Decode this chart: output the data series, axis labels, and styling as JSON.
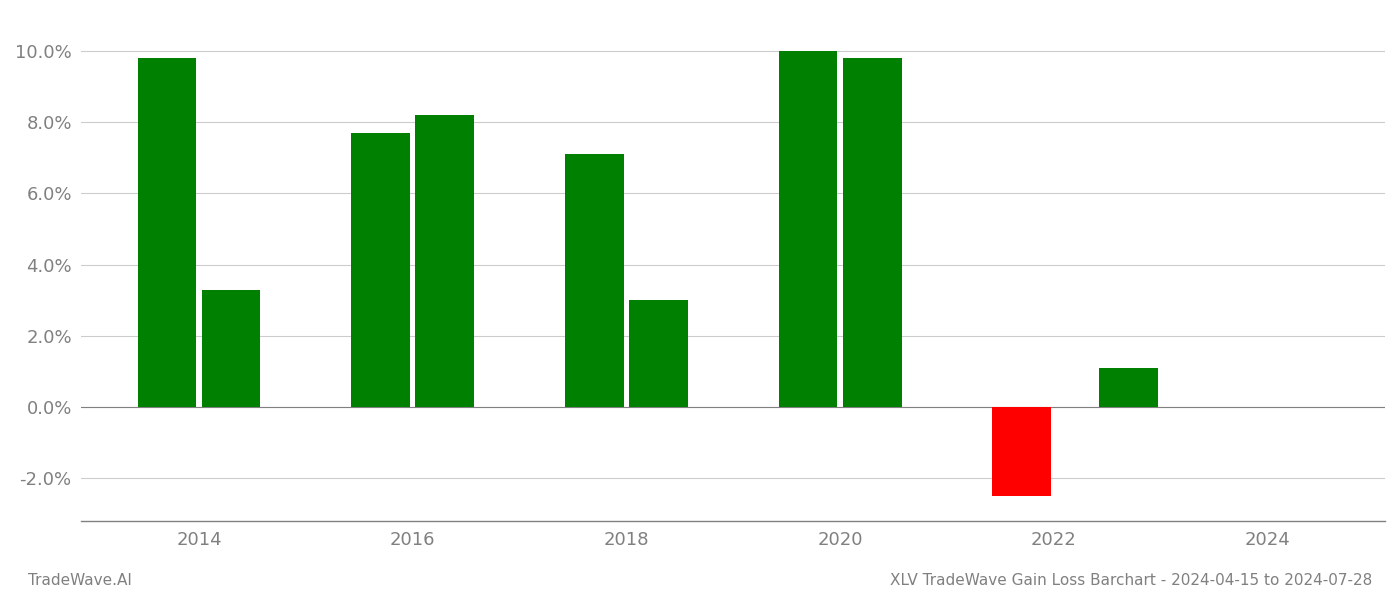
{
  "years": [
    2013.7,
    2014.3,
    2015.7,
    2016.3,
    2017.7,
    2018.3,
    2019.7,
    2020.3,
    2021.7,
    2022.7
  ],
  "values": [
    0.098,
    0.033,
    0.077,
    0.082,
    0.071,
    0.03,
    0.1,
    0.098,
    -0.025,
    0.011
  ],
  "colors": [
    "#008000",
    "#008000",
    "#008000",
    "#008000",
    "#008000",
    "#008000",
    "#008000",
    "#008000",
    "#ff0000",
    "#008000"
  ],
  "ylim": [
    -0.032,
    0.11
  ],
  "yticks": [
    -0.02,
    0.0,
    0.02,
    0.04,
    0.06,
    0.08,
    0.1
  ],
  "xtick_labels": [
    "2014",
    "2016",
    "2018",
    "2020",
    "2022",
    "2024"
  ],
  "xtick_positions": [
    2014.0,
    2016.0,
    2018.0,
    2020.0,
    2022.0,
    2024.0
  ],
  "title": "XLV TradeWave Gain Loss Barchart - 2024-04-15 to 2024-07-28",
  "footer_left": "TradeWave.AI",
  "background_color": "#ffffff",
  "bar_width": 0.55,
  "grid_color": "#cccccc",
  "tick_color": "#808080",
  "spine_color": "#808080"
}
